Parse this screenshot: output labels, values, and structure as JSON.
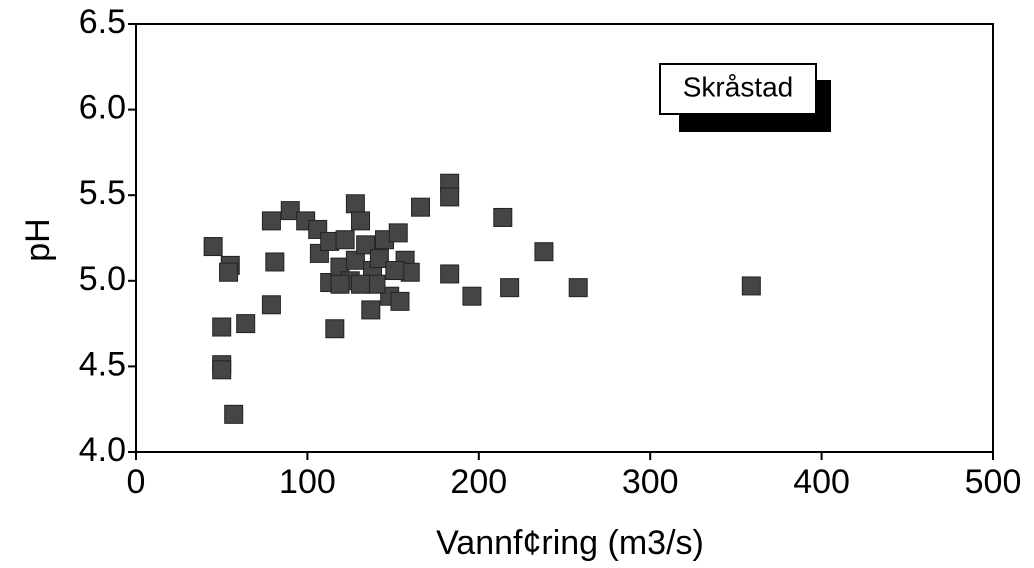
{
  "chart_data": {
    "type": "scatter",
    "x_label": "Vannf¢ring (m3/s)",
    "y_label": "pH",
    "xlim": [
      0,
      500
    ],
    "xticks": [
      0,
      100,
      200,
      300,
      400,
      500
    ],
    "ylim": [
      4.0,
      6.5
    ],
    "yticks": [
      {
        "value": 4.0,
        "label": "4.0"
      },
      4.5,
      {
        "value": 5.0,
        "label": "5.0"
      },
      5.5,
      {
        "value": 6.0,
        "label": "6.0"
      },
      6.5
    ],
    "series": [
      {
        "name": "Skråstad",
        "color": "#454545",
        "x": [
          45,
          55,
          54,
          50,
          64,
          50,
          50,
          57,
          79,
          81,
          79,
          90,
          99,
          106,
          107,
          113,
          116,
          113,
          119,
          122,
          128,
          128,
          125,
          131,
          134,
          137,
          138,
          142,
          145,
          148,
          153,
          154,
          157,
          160,
          166,
          183,
          183,
          183,
          196,
          214,
          218,
          238,
          258,
          359,
          119,
          140,
          151,
          131
        ],
        "values": [
          5.2,
          5.09,
          5.05,
          4.73,
          4.75,
          4.51,
          4.48,
          4.22,
          5.35,
          5.11,
          4.86,
          5.41,
          5.35,
          5.3,
          5.16,
          5.23,
          4.72,
          4.99,
          5.08,
          5.24,
          5.45,
          5.12,
          5.0,
          5.35,
          5.21,
          4.83,
          5.06,
          5.13,
          5.24,
          4.91,
          5.28,
          4.88,
          5.12,
          5.05,
          5.43,
          5.57,
          5.49,
          5.04,
          4.91,
          5.37,
          4.96,
          5.17,
          4.96,
          4.97,
          4.98,
          4.98,
          5.06,
          4.98
        ]
      }
    ]
  }
}
